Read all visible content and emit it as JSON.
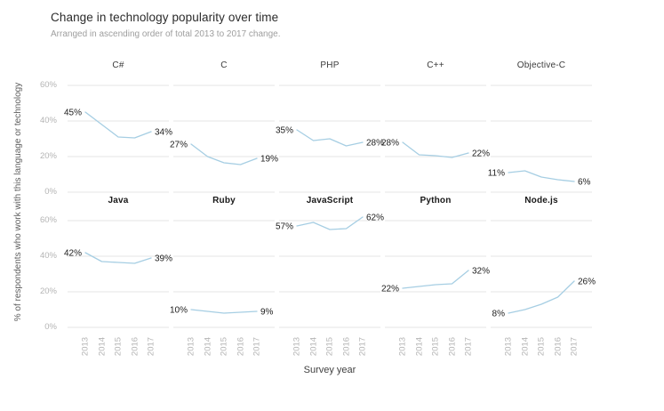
{
  "header": {
    "title": "Change in technology popularity over time",
    "subtitle": "Arranged in ascending order of total 2013 to 2017 change."
  },
  "colors": {
    "line": "#a6cee3",
    "grid": "#e4e4e4",
    "tick_label": "#b4b4b4",
    "value_label": "#1c1c1c"
  },
  "chart_data": {
    "type": "line",
    "facet_layout": {
      "rows": 2,
      "cols": 5
    },
    "x": [
      2013,
      2014,
      2015,
      2016,
      2017
    ],
    "x_tick_labels": [
      "2013",
      "2014",
      "2015",
      "2016",
      "2017"
    ],
    "xlabel": "Survey year",
    "ylabel": "% of respondents who work with this language or technology",
    "ylim": [
      0,
      67
    ],
    "y_ticks": [
      0,
      20,
      40,
      60
    ],
    "y_tick_labels": [
      "0%",
      "20%",
      "40%",
      "60%"
    ],
    "grid": "horizontal-only",
    "legend": "none",
    "series": [
      {
        "name": "C#",
        "values": [
          45,
          38,
          31,
          30.5,
          34
        ],
        "start_label": "45%",
        "end_label": "34%"
      },
      {
        "name": "C",
        "values": [
          27,
          20,
          16.5,
          15.5,
          19
        ],
        "start_label": "27%",
        "end_label": "19%"
      },
      {
        "name": "PHP",
        "values": [
          35,
          29,
          30,
          26,
          28
        ],
        "start_label": "35%",
        "end_label": "28%"
      },
      {
        "name": "C++",
        "values": [
          28,
          21,
          20.5,
          19.5,
          22
        ],
        "start_label": "28%",
        "end_label": "22%"
      },
      {
        "name": "Objective-C",
        "values": [
          11,
          12,
          8.5,
          7,
          6
        ],
        "start_label": "11%",
        "end_label": "6%"
      },
      {
        "name": "Java",
        "values": [
          42,
          37,
          36.5,
          36,
          39
        ],
        "start_label": "42%",
        "end_label": "39%"
      },
      {
        "name": "Ruby",
        "values": [
          10,
          9,
          8,
          8.5,
          9
        ],
        "start_label": "10%",
        "end_label": "9%"
      },
      {
        "name": "JavaScript",
        "values": [
          57,
          59,
          55,
          55.5,
          62
        ],
        "start_label": "57%",
        "end_label": "62%"
      },
      {
        "name": "Python",
        "values": [
          22,
          23,
          24,
          24.5,
          32
        ],
        "start_label": "22%",
        "end_label": "32%"
      },
      {
        "name": "Node.js",
        "values": [
          8,
          10,
          13,
          17,
          26
        ],
        "start_label": "8%",
        "end_label": "26%"
      }
    ]
  }
}
